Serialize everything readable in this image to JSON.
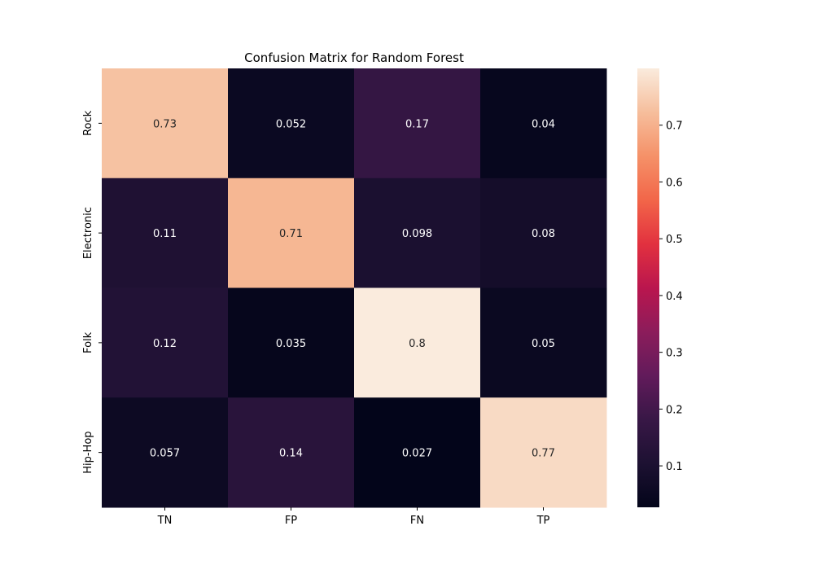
{
  "chart_data": {
    "type": "heatmap",
    "title": "Confusion Matrix for Random Forest",
    "xlabel": "",
    "ylabel": "",
    "x_categories": [
      "TN",
      "FP",
      "FN",
      "TP"
    ],
    "y_categories": [
      "Rock",
      "Electronic",
      "Folk",
      "Hip-Hop"
    ],
    "values": [
      [
        0.73,
        0.052,
        0.17,
        0.04
      ],
      [
        0.11,
        0.71,
        0.098,
        0.08
      ],
      [
        0.12,
        0.035,
        0.8,
        0.05
      ],
      [
        0.057,
        0.14,
        0.027,
        0.77
      ]
    ],
    "cell_labels": [
      [
        "0.73",
        "0.052",
        "0.17",
        "0.04"
      ],
      [
        "0.11",
        "0.71",
        "0.098",
        "0.08"
      ],
      [
        "0.12",
        "0.035",
        "0.8",
        "0.05"
      ],
      [
        "0.057",
        "0.14",
        "0.027",
        "0.77"
      ]
    ],
    "colorbar": {
      "colormap": "rocket",
      "vmin": 0.027,
      "vmax": 0.8,
      "ticks": [
        0.1,
        0.2,
        0.3,
        0.4,
        0.5,
        0.6,
        0.7
      ],
      "tick_labels": [
        "0.1",
        "0.2",
        "0.3",
        "0.4",
        "0.5",
        "0.6",
        "0.7"
      ],
      "position": "right"
    },
    "grid": false
  }
}
